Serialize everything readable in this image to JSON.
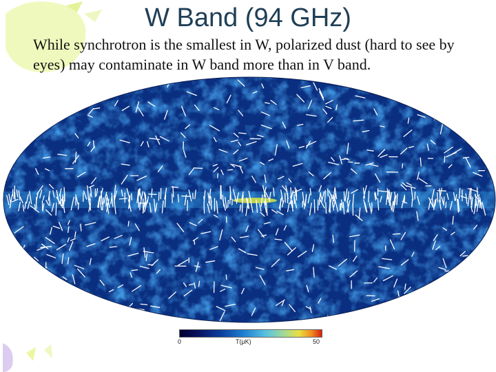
{
  "slide": {
    "title": "W Band (94 GHz)",
    "body": "While synchrotron is the smallest in W, polarized dust (hard to see by eyes) may contaminate in W band more than in V band."
  },
  "map": {
    "colorbar": {
      "min": "0",
      "label": "T(μK)",
      "max": "50"
    },
    "colors": {
      "deep": "#061a5a",
      "mid": "#0d3f96",
      "light": "#2c86cf",
      "plane": "#d8e840",
      "vectors": "#ffffff"
    }
  },
  "decoration": {
    "accent_colors": [
      "#e9f7a3",
      "#f2f7c4",
      "#d9c8ee"
    ]
  }
}
